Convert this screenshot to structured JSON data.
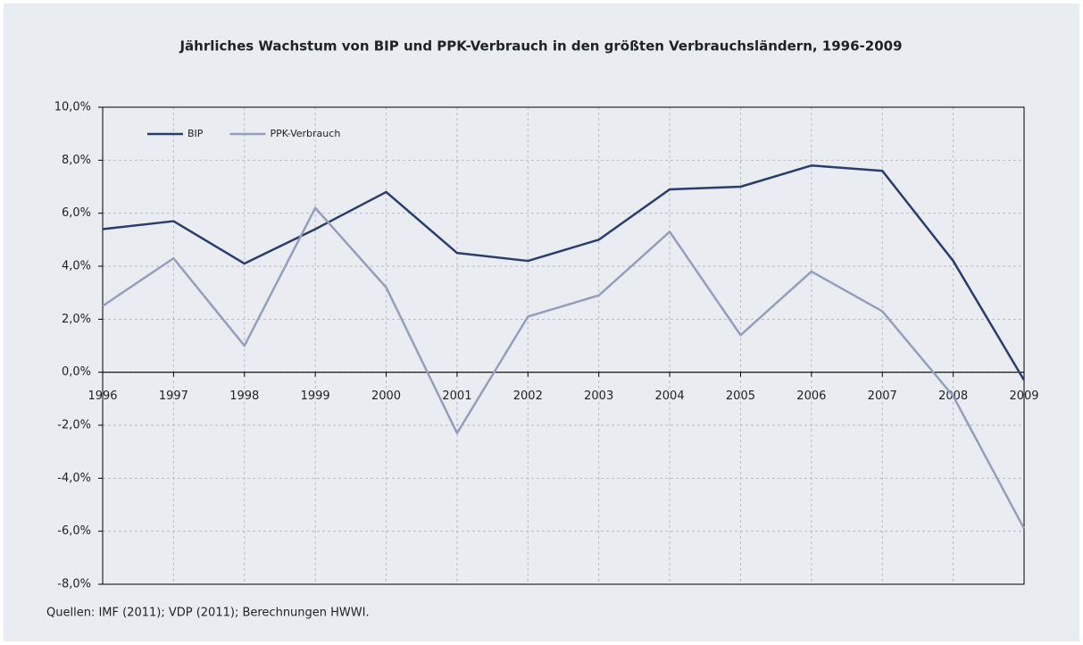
{
  "chart_data": {
    "type": "line",
    "title": "Jährliches Wachstum von BIP und PPK-Verbrauch in den größten Verbrauchsländern, 1996-2009",
    "source": "Quellen: IMF (2011); VDP (2011); Berechnungen HWWI.",
    "x": [
      1996,
      1997,
      1998,
      1999,
      2000,
      2001,
      2002,
      2003,
      2004,
      2005,
      2006,
      2007,
      2008,
      2009
    ],
    "xlim": [
      1996,
      2009
    ],
    "xticks": [
      1996,
      1997,
      1998,
      1999,
      2000,
      2001,
      2002,
      2003,
      2004,
      2005,
      2006,
      2007,
      2008,
      2009
    ],
    "ylim": [
      -8,
      10
    ],
    "yticks": [
      {
        "value": -8,
        "label": "-8,0%"
      },
      {
        "value": -6,
        "label": "-6,0%"
      },
      {
        "value": -4,
        "label": "-4,0%"
      },
      {
        "value": -2,
        "label": "-2,0%"
      },
      {
        "value": 0,
        "label": "0,0%"
      },
      {
        "value": 2,
        "label": "2,0%"
      },
      {
        "value": 4,
        "label": "4,0%"
      },
      {
        "value": 6,
        "label": "6,0%"
      },
      {
        "value": 8,
        "label": "8,0%"
      },
      {
        "value": 10,
        "label": "10,0%"
      }
    ],
    "grid": true,
    "legend": "upper left",
    "series": [
      {
        "name": "BIP",
        "color": "#2b3d6b",
        "values": [
          5.4,
          5.7,
          4.1,
          5.4,
          6.8,
          4.5,
          4.2,
          5.0,
          6.9,
          7.0,
          7.8,
          7.6,
          4.2,
          -0.3
        ]
      },
      {
        "name": "PPK-Verbrauch",
        "color": "#959fba",
        "values": [
          2.5,
          4.3,
          1.0,
          6.2,
          3.2,
          -2.3,
          2.1,
          2.9,
          5.3,
          1.4,
          3.8,
          2.3,
          -0.9,
          -5.9
        ]
      }
    ]
  }
}
